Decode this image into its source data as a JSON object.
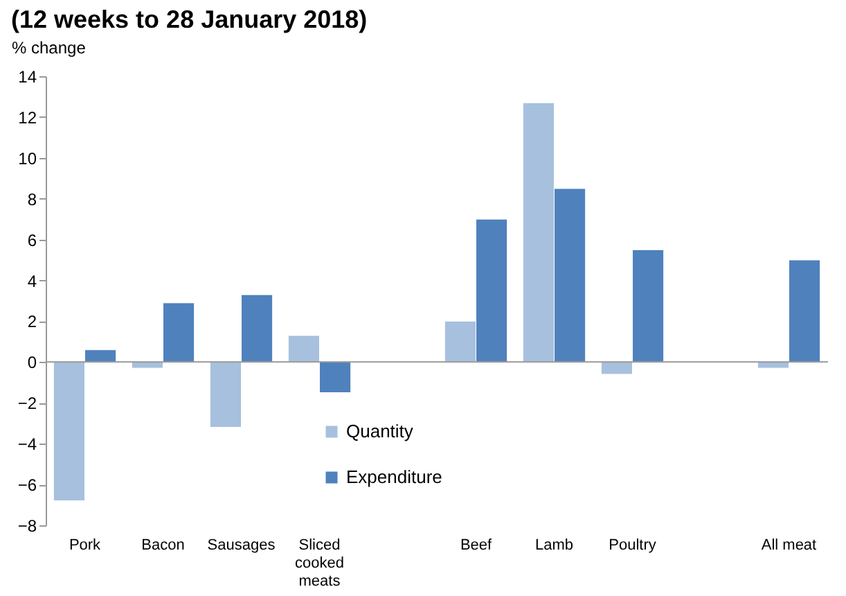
{
  "chart_data": {
    "type": "bar",
    "title": "(12 weeks to 28 January 2018)",
    "ylabel": "% change",
    "categories": [
      "Pork",
      "Bacon",
      "Sausages",
      "Sliced cooked meats",
      null,
      "Beef",
      "Lamb",
      "Poultry",
      null,
      "All meat"
    ],
    "series": [
      {
        "name": "Quantity",
        "color": "#a7c0de",
        "values": [
          -6.8,
          -0.3,
          -3.2,
          1.3,
          null,
          2.0,
          12.7,
          -0.6,
          null,
          -0.3
        ]
      },
      {
        "name": "Expenditure",
        "color": "#4f81bd",
        "values": [
          0.6,
          2.9,
          3.3,
          -1.5,
          null,
          7.0,
          8.5,
          5.5,
          null,
          5.0
        ]
      }
    ],
    "ylim": [
      -8,
      14
    ],
    "yticks": [
      -8,
      -6,
      -4,
      -2,
      0,
      2,
      4,
      6,
      8,
      10,
      12,
      14
    ],
    "ref_lines": [
      {
        "axis": "y",
        "value": 0,
        "color": "#999999"
      }
    ],
    "grid": false,
    "legend": "bottom"
  }
}
